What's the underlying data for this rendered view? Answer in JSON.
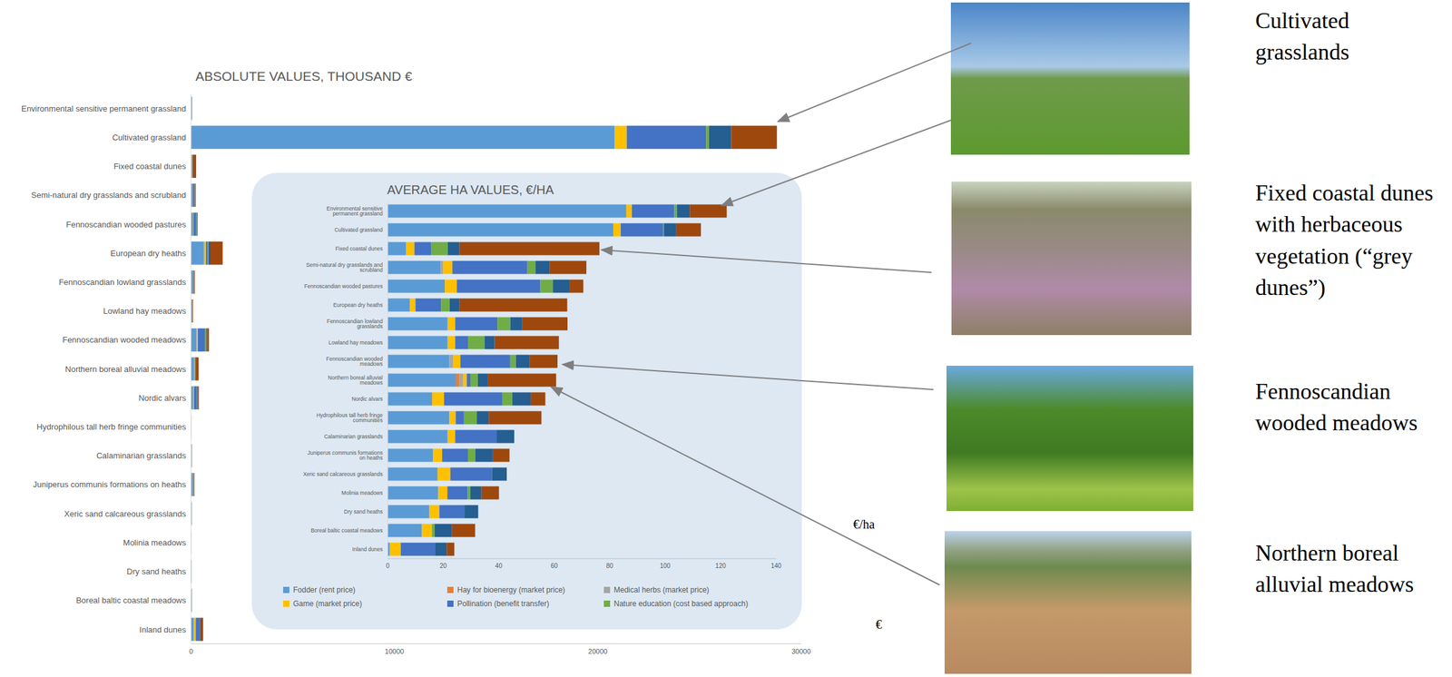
{
  "chart_data": [
    {
      "type": "bar",
      "title": "ABSOLUTE VALUES, THOUSAND €",
      "orientation": "horizontal",
      "stacked": true,
      "categories": [
        "Environmental sensitive permanent grassland",
        "Cultivated grassland",
        "Fixed coastal dunes",
        "Semi-natural dry grasslands and scrubland",
        "Fennoscandian wooded pastures",
        "European dry heaths",
        "Fennoscandian lowland grasslands",
        "Lowland hay meadows",
        "Fennoscandian wooded meadows",
        "Northern boreal alluvial meadows",
        "Nordic alvars",
        "Hydrophilous tall herb fringe communities",
        "Calaminarian grasslands",
        "Juniperus communis formations on heaths",
        "Xeric sand calcareous grasslands",
        "Molinia meadows",
        "Dry sand heaths",
        "Boreal baltic coastal meadows",
        "Inland dunes"
      ],
      "xlim": [
        0,
        30000
      ],
      "xticks": [
        0,
        10000,
        20000,
        30000
      ],
      "series": [
        {
          "color": "#5b9bd5",
          "values": [
            35,
            20826,
            20,
            60,
            95,
            640,
            60,
            30,
            270,
            150,
            110,
            2,
            20,
            60,
            17,
            5,
            14,
            16,
            140
          ]
        },
        {
          "color": "#ed7d31",
          "values": [
            0,
            0,
            0,
            0,
            0,
            0,
            0,
            0,
            0,
            8,
            0,
            0,
            0,
            0,
            0,
            0,
            0,
            0,
            0
          ]
        },
        {
          "color": "#a5a5a5",
          "values": [
            0,
            0,
            0,
            3,
            0,
            0,
            0,
            0,
            15,
            8,
            0,
            0,
            0,
            0,
            0,
            0,
            0,
            0,
            0
          ]
        },
        {
          "color": "#ffc000",
          "values": [
            1,
            596,
            10,
            10,
            20,
            90,
            8,
            4,
            45,
            8,
            30,
            0.5,
            3,
            12,
            4,
            1,
            3,
            5,
            90
          ]
        },
        {
          "color": "#4472c4",
          "values": [
            6,
            3900,
            20,
            90,
            140,
            90,
            40,
            7,
            370,
            8,
            140,
            1,
            14,
            35,
            13,
            2,
            8,
            0,
            180
          ]
        },
        {
          "color": "#70ad47",
          "values": [
            0.5,
            138,
            20,
            10,
            20,
            45,
            12,
            9,
            45,
            16,
            25,
            1,
            0,
            10,
            0,
            0.5,
            0,
            1,
            0
          ]
        },
        {
          "color": "#255e91",
          "values": [
            2,
            1100,
            15,
            15,
            30,
            90,
            12,
            5,
            45,
            22,
            45,
            1,
            6,
            25,
            5,
            1,
            5,
            8,
            45
          ]
        },
        {
          "color": "#9e480e",
          "values": [
            6,
            2248,
            165,
            42,
            15,
            600,
            48,
            35,
            90,
            150,
            35,
            4,
            0,
            23,
            0,
            2,
            0,
            10,
            140
          ]
        }
      ]
    },
    {
      "type": "bar",
      "title": "AVERAGE HA VALUES, €/HA",
      "orientation": "horizontal",
      "stacked": true,
      "legend": "bottom",
      "categories": [
        "Environmental sensitive permanent grassland",
        "Cultivated grassland",
        "Fixed coastal dunes",
        "Semi-natural dry grasslands and scrubland",
        "Fennoscandian wooded pastures",
        "European dry heaths",
        "Fennoscandian lowland grasslands",
        "Lowland hay meadows",
        "Fennoscandian wooded meadows",
        "Northern boreal alluvial meadows",
        "Nordic alvars",
        "Hydrophilous tall herb fringe communities",
        "Calaminarian grasslands",
        "Juniperus communis formations on heaths",
        "Xeric sand calcareous grasslands",
        "Molinia meadows",
        "Dry sand heaths",
        "Boreal baltic coastal meadows",
        "Inland dunes"
      ],
      "xlim": [
        0,
        140
      ],
      "xticks": [
        0,
        20,
        40,
        60,
        80,
        100,
        120,
        140
      ],
      "series": [
        {
          "name": "Fodder (rent price)",
          "color": "#5b9bd5",
          "values": [
            86,
            81.3,
            6.6,
            19,
            20.6,
            8,
            21.6,
            21.6,
            22.2,
            24.6,
            16,
            22.2,
            21.6,
            16.3,
            18,
            18.2,
            15,
            12.3,
            0.7
          ]
        },
        {
          "name": "Hay for bioenergy (market price)",
          "color": "#ed7d31",
          "values": [
            0,
            0,
            0,
            0,
            0,
            0,
            0,
            0,
            0,
            1.3,
            0,
            0,
            0,
            0,
            0,
            0,
            0,
            0,
            0
          ]
        },
        {
          "name": "Medical herbs (market price)",
          "color": "#a5a5a5",
          "values": [
            0,
            0,
            0,
            1,
            0,
            0,
            0,
            0,
            1.3,
            1.3,
            0,
            0,
            0,
            0,
            0,
            0,
            0,
            0,
            0
          ]
        },
        {
          "name": "Game (market price)",
          "color": "#ffc000",
          "values": [
            2,
            2.7,
            3,
            3.3,
            4.3,
            2,
            2.7,
            2.7,
            2.7,
            1.3,
            4.3,
            2.3,
            2.7,
            3.3,
            4.6,
            3.3,
            3.6,
            3.6,
            4
          ]
        },
        {
          "name": "Pollination (benefit transfer)",
          "color": "#4472c4",
          "values": [
            15.3,
            15.3,
            6,
            27,
            30,
            9.3,
            15.3,
            4.6,
            18,
            1.3,
            21,
            3,
            15,
            9.3,
            15,
            7.3,
            9,
            0,
            12.3
          ]
        },
        {
          "name": "Nature education (cost based approach)",
          "color": "#70ad47",
          "values": [
            1,
            0.3,
            6,
            3,
            4.6,
            3,
            4.6,
            6,
            2,
            2.7,
            3.6,
            4.6,
            0,
            2.7,
            0,
            1,
            0,
            1,
            0
          ]
        },
        {
          "color": "#255e91",
          "values": [
            4.6,
            4.3,
            4.3,
            5,
            6,
            3.6,
            4.3,
            3.6,
            5,
            3.6,
            6.6,
            4.3,
            6.3,
            6.3,
            5.3,
            4,
            5,
            6.3,
            4.3
          ]
        },
        {
          "color": "#9e480e",
          "values": [
            13.3,
            9,
            50.4,
            13.3,
            5,
            38.8,
            16.3,
            23.2,
            10,
            24.6,
            5.3,
            19,
            0,
            6,
            0,
            6.3,
            0,
            8.3,
            2.7
          ]
        }
      ]
    }
  ],
  "photo_labels": [
    "Cultivated grasslands",
    "Fixed coastal dunes with herbaceous vegetation (“grey dunes”)",
    "Fennoscandian wooded meadows",
    "Northern boreal alluvial meadows"
  ],
  "annotations": [
    "€/ha",
    "€"
  ]
}
